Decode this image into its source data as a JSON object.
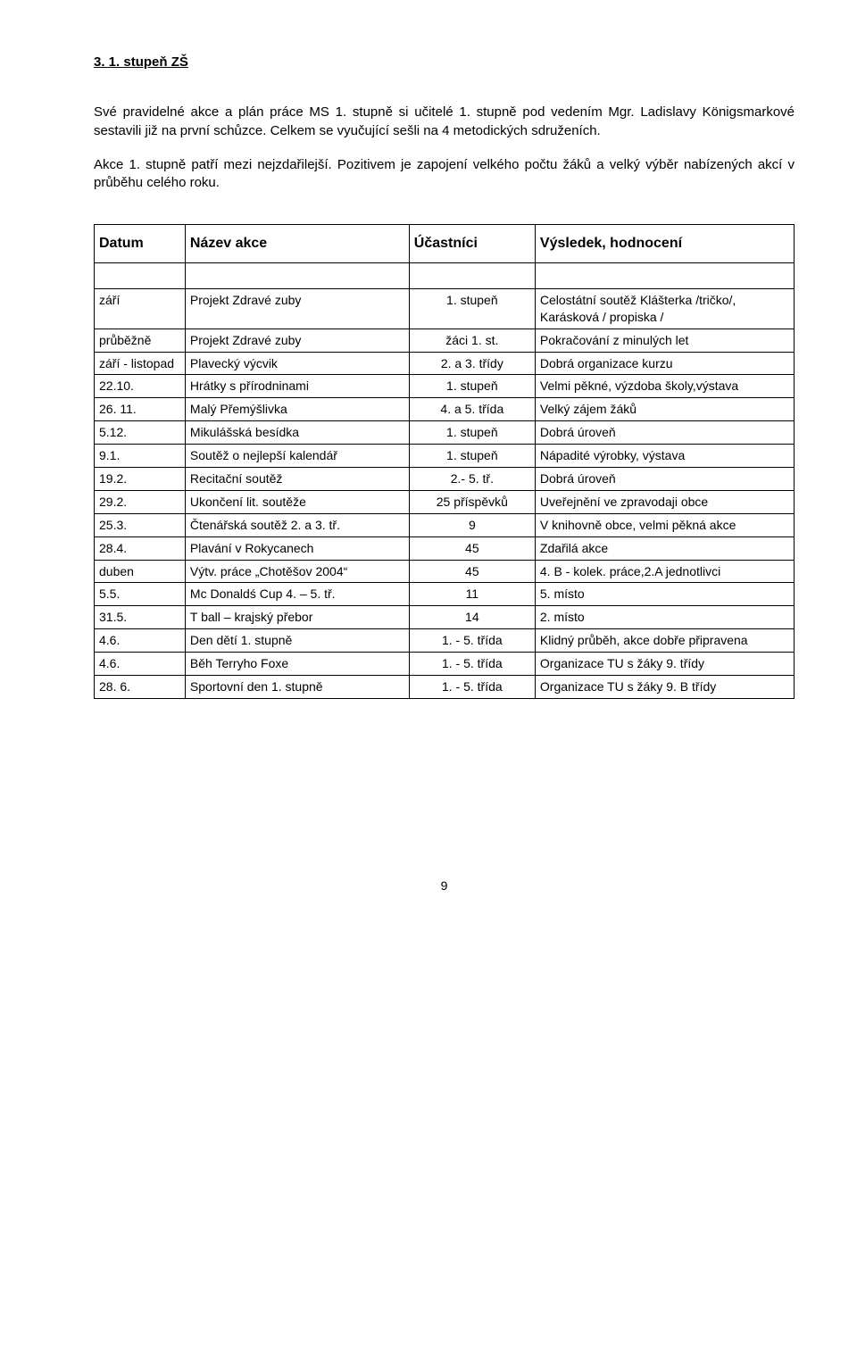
{
  "heading": "3. 1. stupeň ZŠ",
  "para1": "Své pravidelné akce a plán práce MS 1. stupně si učitelé 1. stupně pod vedením Mgr. Ladislavy Königsmarkové sestavili již na první schůzce. Celkem se vyučující sešli na 4 metodických sdruženích.",
  "para2": "Akce 1. stupně patří mezi nejzdařilejší. Pozitivem je zapojení velkého počtu žáků a velký výběr nabízených akcí v průběhu celého roku.",
  "table": {
    "headers": [
      "Datum",
      "Název akce",
      "Účastníci",
      "Výsledek, hodnocení"
    ],
    "rows": [
      [
        "září",
        "Projekt Zdravé zuby",
        "1. stupeň",
        "Celostátní soutěž Klášterka /tričko/, Karásková / propiska /"
      ],
      [
        "průběžně",
        "Projekt Zdravé zuby",
        "žáci 1. st.",
        "Pokračování z minulých let"
      ],
      [
        "září - listopad",
        "Plavecký výcvik",
        "2. a 3. třídy",
        " Dobrá organizace kurzu"
      ],
      [
        "22.10.",
        "Hrátky s přírodninami",
        "1. stupeň",
        "Velmi pěkné, výzdoba školy,výstava"
      ],
      [
        "26. 11.",
        "Malý Přemýšlivka",
        "4. a 5. třída",
        "Velký zájem žáků"
      ],
      [
        "5.12.",
        "Mikulášská besídka",
        "1. stupeň",
        "Dobrá úroveň"
      ],
      [
        "9.1.",
        "Soutěž o nejlepší  kalendář",
        "1. stupeň",
        "Nápadité výrobky, výstava"
      ],
      [
        "19.2.",
        "Recitační soutěž",
        "2.- 5. tř.",
        "Dobrá úroveň"
      ],
      [
        "29.2.",
        "Ukončení lit. soutěže",
        "25 příspěvků",
        " Uveřejnění ve zpravodaji obce"
      ],
      [
        "25.3.",
        "Čtenářská soutěž 2. a 3. tř.",
        "9",
        " V knihovně obce, velmi pěkná akce"
      ],
      [
        "28.4.",
        "Plavání v Rokycanech",
        "45",
        " Zdařilá  akce"
      ],
      [
        "duben",
        "Výtv. práce „Chotěšov 2004“",
        "45",
        " 4. B -  kolek. práce,2.A jednotlivci"
      ],
      [
        "5.5.",
        "Mc Donaldś Cup 4. – 5. tř.",
        "11",
        "5. místo"
      ],
      [
        "31.5.",
        "T ball – krajský přebor",
        "14",
        "2. místo"
      ],
      [
        "4.6.",
        "Den dětí 1. stupně",
        "1. - 5. třída",
        "Klidný průběh, akce dobře připravena"
      ],
      [
        "4.6.",
        "Běh Terryho Foxe",
        "1. - 5. třída",
        "Organizace TU s žáky 9. třídy"
      ],
      [
        "28. 6.",
        "Sportovní den 1. stupně",
        "1. - 5. třída",
        "Organizace TU s žáky 9. B třídy"
      ]
    ]
  },
  "page_number": "9"
}
